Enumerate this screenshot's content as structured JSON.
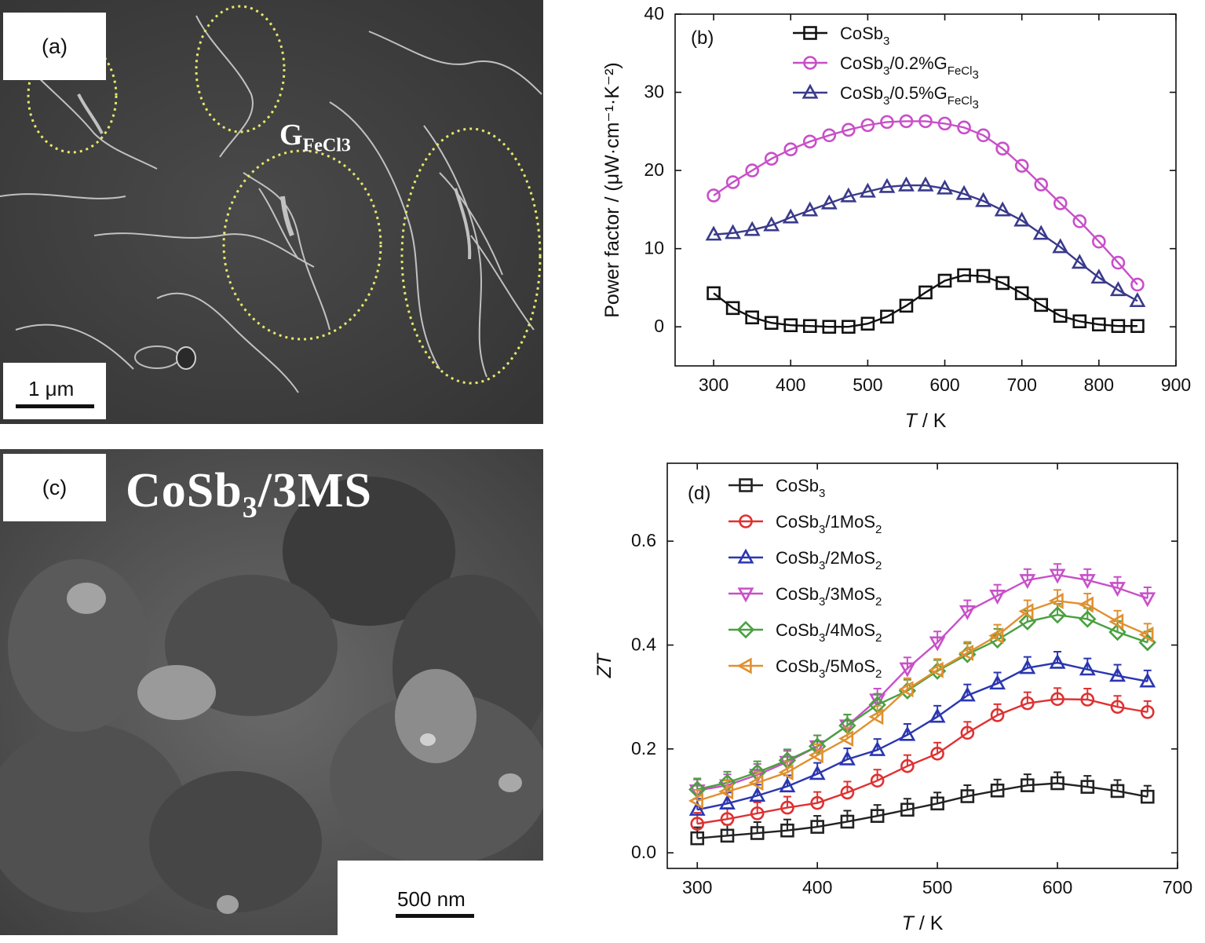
{
  "panel_a": {
    "label": "(a)",
    "annotation": "GFeCl3",
    "annotation_main": "G",
    "annotation_sub": "FeCl3",
    "scale_bar": "1 μm",
    "ellipse_color": "#e6e86a"
  },
  "panel_c": {
    "label": "(c)",
    "title_main": "CoSb",
    "title_sub": "3",
    "title_rest": "/3MS",
    "scale_bar": "500 nm"
  },
  "chart_data": [
    {
      "panel": "(b)",
      "type": "line",
      "xlabel": "T / K",
      "ylabel": "Power factor / (μW·cm⁻¹·K⁻²)",
      "xlim": [
        250,
        900
      ],
      "ylim": [
        -5,
        40
      ],
      "xticks": [
        300,
        400,
        500,
        600,
        700,
        800,
        900
      ],
      "yticks": [
        0,
        10,
        20,
        30,
        40
      ],
      "legend_position": "top-center",
      "series": [
        {
          "name": "CoSb3",
          "color": "#111111",
          "marker": "square",
          "x": [
            300,
            325,
            350,
            375,
            400,
            425,
            450,
            475,
            500,
            525,
            550,
            575,
            600,
            625,
            650,
            675,
            700,
            725,
            750,
            775,
            800,
            825,
            850
          ],
          "y": [
            4.3,
            2.4,
            1.2,
            0.5,
            0.2,
            0.1,
            0.0,
            0.0,
            0.4,
            1.3,
            2.7,
            4.4,
            5.9,
            6.6,
            6.5,
            5.6,
            4.3,
            2.8,
            1.4,
            0.7,
            0.3,
            0.1,
            0.1
          ]
        },
        {
          "name": "CoSb3/0.2%GFeCl3",
          "color": "#c84fc8",
          "marker": "circle",
          "x": [
            300,
            325,
            350,
            375,
            400,
            425,
            450,
            475,
            500,
            525,
            550,
            575,
            600,
            625,
            650,
            675,
            700,
            725,
            750,
            775,
            800,
            825,
            850
          ],
          "y": [
            16.8,
            18.5,
            20.0,
            21.5,
            22.7,
            23.7,
            24.5,
            25.2,
            25.8,
            26.2,
            26.3,
            26.3,
            26.0,
            25.5,
            24.5,
            22.8,
            20.6,
            18.2,
            15.8,
            13.5,
            10.9,
            8.2,
            5.4
          ]
        },
        {
          "name": "CoSb3/0.5%GFeCl3",
          "color": "#3a3a8c",
          "marker": "triangle",
          "x": [
            300,
            325,
            350,
            375,
            400,
            425,
            450,
            475,
            500,
            525,
            550,
            575,
            600,
            625,
            650,
            675,
            700,
            725,
            750,
            775,
            800,
            825,
            850
          ],
          "y": [
            11.8,
            12.0,
            12.4,
            13.0,
            14.0,
            14.9,
            15.8,
            16.7,
            17.3,
            17.9,
            18.1,
            18.1,
            17.7,
            17.0,
            16.1,
            14.9,
            13.6,
            11.9,
            10.2,
            8.2,
            6.3,
            4.7,
            3.3
          ]
        }
      ]
    },
    {
      "panel": "(d)",
      "type": "line",
      "xlabel": "T / K",
      "ylabel": "ZT",
      "xlim": [
        275,
        700
      ],
      "ylim": [
        -0.03,
        0.75
      ],
      "xticks": [
        300,
        400,
        500,
        600,
        700
      ],
      "yticks": [
        0.0,
        0.2,
        0.4,
        0.6
      ],
      "legend_position": "top-left",
      "series": [
        {
          "name": "CoSb3",
          "color": "#222222",
          "marker": "square",
          "x": [
            300,
            325,
            350,
            375,
            400,
            425,
            450,
            475,
            500,
            525,
            550,
            575,
            600,
            625,
            650,
            675
          ],
          "y": [
            0.028,
            0.033,
            0.038,
            0.043,
            0.05,
            0.06,
            0.071,
            0.083,
            0.095,
            0.109,
            0.12,
            0.13,
            0.134,
            0.127,
            0.119,
            0.108
          ]
        },
        {
          "name": "CoSb3/1MoS2",
          "color": "#e03030",
          "marker": "circle",
          "x": [
            300,
            325,
            350,
            375,
            400,
            425,
            450,
            475,
            500,
            525,
            550,
            575,
            600,
            625,
            650,
            675
          ],
          "y": [
            0.056,
            0.065,
            0.076,
            0.087,
            0.096,
            0.116,
            0.139,
            0.167,
            0.191,
            0.231,
            0.265,
            0.288,
            0.296,
            0.295,
            0.281,
            0.271
          ]
        },
        {
          "name": "CoSb3/2MoS2",
          "color": "#2a36b0",
          "marker": "triangle",
          "x": [
            300,
            325,
            350,
            375,
            400,
            425,
            450,
            475,
            500,
            525,
            550,
            575,
            600,
            625,
            650,
            675
          ],
          "y": [
            0.083,
            0.095,
            0.11,
            0.128,
            0.152,
            0.18,
            0.198,
            0.227,
            0.262,
            0.303,
            0.326,
            0.356,
            0.366,
            0.353,
            0.341,
            0.33
          ]
        },
        {
          "name": "CoSb3/3MoS2",
          "color": "#c850c8",
          "marker": "triangle-down",
          "x": [
            300,
            325,
            350,
            375,
            400,
            425,
            450,
            475,
            500,
            525,
            550,
            575,
            600,
            625,
            650,
            675
          ],
          "y": [
            0.12,
            0.13,
            0.15,
            0.175,
            0.205,
            0.245,
            0.295,
            0.355,
            0.405,
            0.465,
            0.495,
            0.525,
            0.535,
            0.525,
            0.51,
            0.49
          ]
        },
        {
          "name": "CoSb3/4MoS2",
          "color": "#4aa040",
          "marker": "diamond",
          "x": [
            300,
            325,
            350,
            375,
            400,
            425,
            450,
            475,
            500,
            525,
            550,
            575,
            600,
            625,
            650,
            675
          ],
          "y": [
            0.122,
            0.135,
            0.155,
            0.178,
            0.205,
            0.245,
            0.285,
            0.312,
            0.35,
            0.382,
            0.41,
            0.445,
            0.458,
            0.45,
            0.425,
            0.405
          ]
        },
        {
          "name": "CoSb3/5MoS2",
          "color": "#e09030",
          "marker": "triangle-left",
          "x": [
            300,
            325,
            350,
            375,
            400,
            425,
            450,
            475,
            500,
            525,
            550,
            575,
            600,
            625,
            650,
            675
          ],
          "y": [
            0.1,
            0.118,
            0.135,
            0.155,
            0.188,
            0.22,
            0.262,
            0.315,
            0.352,
            0.385,
            0.418,
            0.465,
            0.485,
            0.478,
            0.445,
            0.42
          ]
        }
      ]
    }
  ]
}
